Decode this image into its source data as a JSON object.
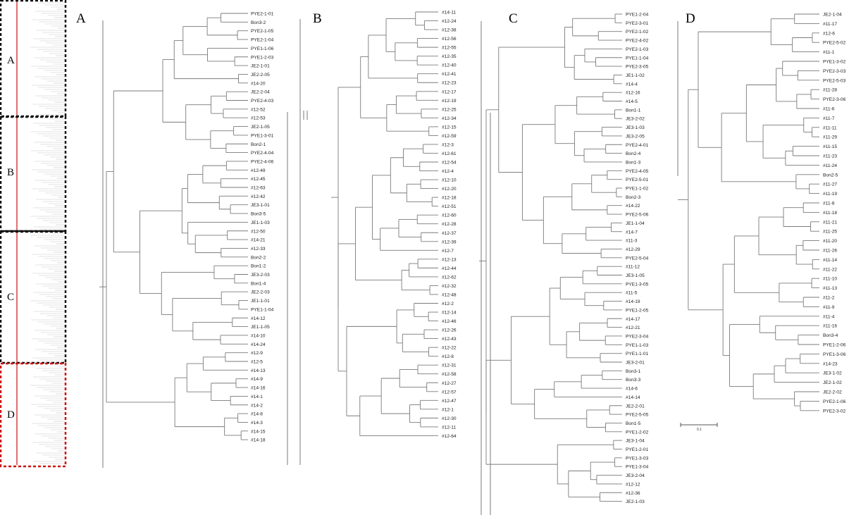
{
  "figure": {
    "panel_labels": [
      "A",
      "B",
      "C",
      "D"
    ],
    "overview_labels": [
      "A",
      "B",
      "C",
      "D"
    ],
    "scale_bar_label": "0.1"
  },
  "panels": [
    {
      "id": "A",
      "leaves": [
        "PYE2-1-01",
        "Bon3-2",
        "PYE2-1-05",
        "PYE2-1-04",
        "PYE1-1-06",
        "PYE1-2-03",
        "JE2-1-01",
        "JE2-2-05",
        "#14-20",
        "JE2-2-04",
        "PYE2-4-03",
        "#12-52",
        "#12-53",
        "JE2-1-05",
        "PYE1-3-01",
        "Bon2-1",
        "PYE2-4-04",
        "PYE2-4-06",
        "#12-49",
        "#12-45",
        "#12-63",
        "#12-42",
        "JE3-1-01",
        "Bon3-5",
        "JE1-1-03",
        "#12-50",
        "#14-21",
        "#12-33",
        "Bon2-2",
        "Bon1-2",
        "JE3-2-03",
        "Bon1-4",
        "JE2-2-03",
        "JE1-1-01",
        "PYE1-1-04",
        "#14-12",
        "JE1-1-05",
        "#14-10",
        "#14-24",
        "#12-9",
        "#12-5",
        "#14-13",
        "#14-9",
        "#14-16",
        "#14-1",
        "#14-2",
        "#14-8",
        "#14-3",
        "#14-15",
        "#14-18"
      ]
    },
    {
      "id": "B",
      "leaves": [
        "#14-11",
        "#12-24",
        "#12-38",
        "#12-56",
        "#12-55",
        "#12-35",
        "#12-40",
        "#12-41",
        "#12-23",
        "#12-17",
        "#12-19",
        "#12-25",
        "#12-34",
        "#12-15",
        "#12-59",
        "#12-3",
        "#12-61",
        "#12-54",
        "#12-4",
        "#12-10",
        "#12-20",
        "#12-18",
        "#12-51",
        "#12-60",
        "#12-28",
        "#12-37",
        "#12-39",
        "#12-7",
        "#12-13",
        "#12-44",
        "#12-62",
        "#12-32",
        "#12-48",
        "#12-2",
        "#12-14",
        "#12-46",
        "#12-26",
        "#12-43",
        "#12-22",
        "#12-8",
        "#12-31",
        "#12-58",
        "#12-27",
        "#12-57",
        "#12-47",
        "#12-1",
        "#12-30",
        "#12-11",
        "#12-64"
      ]
    },
    {
      "id": "C",
      "leaves": [
        "PYE1-2-04",
        "PYE2-3-01",
        "PYE2-1-02",
        "PYE2-4-02",
        "PYE2-1-03",
        "PYE1-1-04",
        "PYE2-3-05",
        "JE1-1-02",
        "#14-4",
        "#12-16",
        "#14-5",
        "Bon1-1",
        "JE3-2-02",
        "JE3-1-03",
        "JE3-2-05",
        "PYE2-4-01",
        "Bon2-4",
        "Bon1-3",
        "PYE2-4-05",
        "PYE2-5-01",
        "PYE1-1-02",
        "Bon2-3",
        "#14-22",
        "PYE2-5-06",
        "JE1-1-04",
        "#14-7",
        "#11-3",
        "#12-29",
        "PYE2-5-04",
        "#11-12",
        "JE3-1-05",
        "PYE1-3-05",
        "#11-5",
        "#14-19",
        "PYE1-2-05",
        "#14-17",
        "#12-21",
        "PYE2-3-04",
        "PYE1-1-03",
        "PYE1-1-01",
        "JE3-2-01",
        "Bon3-1",
        "Bon3-3",
        "#14-6",
        "#14-14",
        "JE2-2-01",
        "PYE2-5-05",
        "Bon1-5",
        "PYE1-2-02",
        "JE3-1-04",
        "PYE1-2-01",
        "PYE1-3-03",
        "PYE1-3-04",
        "JE3-2-04",
        "#12-12",
        "#12-36",
        "JE2-1-03"
      ]
    },
    {
      "id": "D",
      "leaves": [
        "JE2-1-04",
        "#11-17",
        "#12-6",
        "PYE2-5-02",
        "#11-1",
        "PYE1-3-02",
        "PYE2-3-03",
        "PYE2-5-03",
        "#11-28",
        "PYE2-3-06",
        "#11-6",
        "#11-7",
        "#11-11",
        "#11-29",
        "#11-15",
        "#11-23",
        "#11-24",
        "Bon2-5",
        "#11-27",
        "#11-19",
        "#11-8",
        "#11-18",
        "#11-21",
        "#11-25",
        "#11-20",
        "#11-26",
        "#11-14",
        "#11-22",
        "#11-10",
        "#11-13",
        "#11-2",
        "#11-9",
        "#11-4",
        "#11-16",
        "Bon3-4",
        "PYE1-2-06",
        "PYE1-3-06",
        "#14-23",
        "JE3-1-02",
        "JE2-1-02",
        "JE2-2-02",
        "PYE2-1-06",
        "PYE2-3-02"
      ]
    }
  ],
  "colors": {
    "branch": "#7a7a7a",
    "overview_dashed": "#111111",
    "overview_red": "#cc1111",
    "overview_tree": "#c8c8c8"
  }
}
